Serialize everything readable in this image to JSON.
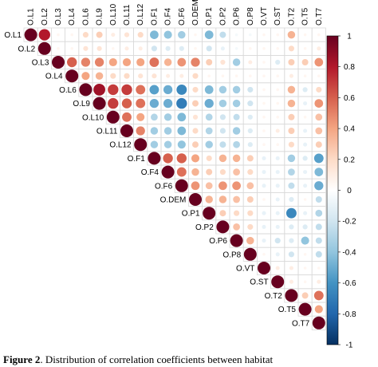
{
  "chart_data": {
    "type": "heatmap",
    "subtype": "correlation-matrix-upper",
    "variables": [
      "O.L1",
      "O.L2",
      "O.L3",
      "O.L4",
      "O.L6",
      "O.L9",
      "O.L10",
      "O.L11",
      "O.L12",
      "O.F1",
      "O.F4",
      "O.F6",
      "O.DEM",
      "O.P1",
      "O.P2",
      "O.P6",
      "O.P8",
      "O.VT",
      "O.ST",
      "O.T2",
      "O.T5",
      "O.T7"
    ],
    "matrix": [
      [
        1,
        0.8,
        0.05,
        0.05,
        0.2,
        0.25,
        0.1,
        0.15,
        0.2,
        -0.45,
        -0.4,
        -0.35,
        0.05,
        -0.45,
        -0.25,
        -0.05,
        -0.05,
        0.05,
        0.05,
        0.35,
        0.05,
        0.05
      ],
      [
        null,
        1,
        0.05,
        0.05,
        0.15,
        0.15,
        0.05,
        0.1,
        0.1,
        -0.2,
        -0.15,
        -0.15,
        0.05,
        -0.2,
        -0.1,
        -0.05,
        0.05,
        0.05,
        0.05,
        0.2,
        0.05,
        0.1
      ],
      [
        null,
        null,
        1,
        0.6,
        0.5,
        0.5,
        0.4,
        0.4,
        0.4,
        0.55,
        0.35,
        0.45,
        0.5,
        0.25,
        0.15,
        -0.35,
        0.1,
        0.05,
        -0.15,
        0.25,
        0.25,
        0.45
      ],
      [
        null,
        null,
        null,
        1,
        0.4,
        0.35,
        0.2,
        0.2,
        0.15,
        0.15,
        0.1,
        0.1,
        0.2,
        0.05,
        0.05,
        0.05,
        0.05,
        0.05,
        0.05,
        0.1,
        0.05,
        0.05
      ],
      [
        null,
        null,
        null,
        null,
        1,
        0.85,
        0.7,
        0.7,
        0.55,
        -0.55,
        -0.5,
        -0.65,
        0.2,
        -0.45,
        -0.35,
        -0.35,
        -0.2,
        0.05,
        0.05,
        0.35,
        -0.15,
        0.2
      ],
      [
        null,
        null,
        null,
        null,
        null,
        1,
        0.7,
        0.6,
        0.55,
        -0.5,
        -0.5,
        -0.7,
        0.25,
        -0.5,
        -0.35,
        -0.35,
        -0.2,
        0.05,
        0.05,
        0.35,
        -0.1,
        0.45
      ],
      [
        null,
        null,
        null,
        null,
        null,
        null,
        1,
        0.55,
        0.4,
        -0.3,
        -0.35,
        -0.45,
        0.15,
        -0.3,
        -0.2,
        -0.25,
        -0.15,
        0.05,
        0.05,
        0.25,
        0.05,
        0.3
      ],
      [
        null,
        null,
        null,
        null,
        null,
        null,
        null,
        1,
        0.5,
        -0.35,
        -0.35,
        -0.45,
        0.2,
        -0.3,
        -0.2,
        -0.35,
        -0.15,
        0.05,
        0.1,
        0.25,
        -0.1,
        0.3
      ],
      [
        null,
        null,
        null,
        null,
        null,
        null,
        null,
        null,
        1,
        -0.35,
        -0.35,
        -0.4,
        0.25,
        -0.35,
        -0.25,
        -0.3,
        -0.15,
        0.05,
        0.05,
        0.2,
        -0.1,
        0.25
      ],
      [
        null,
        null,
        null,
        null,
        null,
        null,
        null,
        null,
        null,
        1,
        0.6,
        0.6,
        0.4,
        0.2,
        0.35,
        0.35,
        0.25,
        -0.1,
        -0.1,
        -0.35,
        -0.15,
        -0.55
      ],
      [
        null,
        null,
        null,
        null,
        null,
        null,
        null,
        null,
        null,
        null,
        1,
        0.55,
        0.35,
        0.25,
        0.2,
        0.3,
        0.2,
        -0.1,
        -0.1,
        -0.3,
        -0.1,
        -0.45
      ],
      [
        null,
        null,
        null,
        null,
        null,
        null,
        null,
        null,
        null,
        null,
        null,
        1,
        0.45,
        0.3,
        0.45,
        0.45,
        0.3,
        -0.1,
        -0.1,
        -0.25,
        -0.1,
        -0.5
      ],
      [
        null,
        null,
        null,
        null,
        null,
        null,
        null,
        null,
        null,
        null,
        null,
        null,
        1,
        0.35,
        0.35,
        0.3,
        0.25,
        0.05,
        -0.1,
        -0.15,
        0.05,
        -0.25
      ],
      [
        null,
        null,
        null,
        null,
        null,
        null,
        null,
        null,
        null,
        null,
        null,
        null,
        null,
        1,
        0.25,
        0.2,
        0.2,
        -0.1,
        -0.1,
        -0.65,
        -0.1,
        -0.3
      ],
      [
        null,
        null,
        null,
        null,
        null,
        null,
        null,
        null,
        null,
        null,
        null,
        null,
        null,
        null,
        1,
        0.3,
        0.2,
        -0.1,
        -0.1,
        -0.15,
        -0.15,
        -0.25
      ],
      [
        null,
        null,
        null,
        null,
        null,
        null,
        null,
        null,
        null,
        null,
        null,
        null,
        null,
        null,
        null,
        1,
        0.35,
        -0.1,
        -0.2,
        -0.15,
        -0.4,
        -0.25
      ],
      [
        null,
        null,
        null,
        null,
        null,
        null,
        null,
        null,
        null,
        null,
        null,
        null,
        null,
        null,
        null,
        null,
        1,
        0.05,
        -0.1,
        -0.2,
        0.05,
        -0.25
      ],
      [
        null,
        null,
        null,
        null,
        null,
        null,
        null,
        null,
        null,
        null,
        null,
        null,
        null,
        null,
        null,
        null,
        null,
        1,
        0.1,
        0.1,
        0.05,
        0.05
      ],
      [
        null,
        null,
        null,
        null,
        null,
        null,
        null,
        null,
        null,
        null,
        null,
        null,
        null,
        null,
        null,
        null,
        null,
        null,
        1,
        0.1,
        0.05,
        0.1
      ],
      [
        null,
        null,
        null,
        null,
        null,
        null,
        null,
        null,
        null,
        null,
        null,
        null,
        null,
        null,
        null,
        null,
        null,
        null,
        null,
        1,
        0.25,
        0.55
      ],
      [
        null,
        null,
        null,
        null,
        null,
        null,
        null,
        null,
        null,
        null,
        null,
        null,
        null,
        null,
        null,
        null,
        null,
        null,
        null,
        null,
        1,
        0.4
      ],
      [
        null,
        null,
        null,
        null,
        null,
        null,
        null,
        null,
        null,
        null,
        null,
        null,
        null,
        null,
        null,
        null,
        null,
        null,
        null,
        null,
        null,
        1
      ]
    ],
    "colorbar": {
      "range": [
        -1,
        1
      ],
      "ticks": [
        "1",
        "0.8",
        "0.6",
        "0.4",
        "0.2",
        "0",
        "-0.2",
        "-0.4",
        "-0.6",
        "-0.8",
        "-1"
      ],
      "tick_values": [
        1,
        0.8,
        0.6,
        0.4,
        0.2,
        0,
        -0.2,
        -0.4,
        -0.6,
        -0.8,
        -1
      ],
      "colors": [
        "#67001f",
        "#b2182b",
        "#d6604d",
        "#f4a582",
        "#fddbc7",
        "#ffffff",
        "#d1e5f0",
        "#92c5de",
        "#4393c3",
        "#2166ac",
        "#053061"
      ]
    },
    "grid": true,
    "legend_position": "right"
  },
  "caption": {
    "label": "Figure 2",
    "text": "Distribution of correlation coefficients between habitat"
  }
}
